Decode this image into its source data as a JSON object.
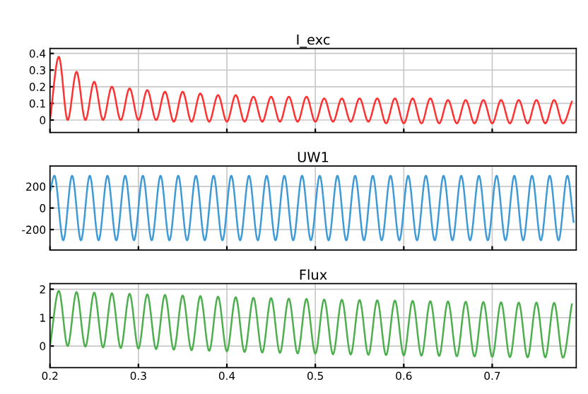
{
  "chart_data": [
    {
      "type": "line",
      "title": "I_exc",
      "xlim": [
        0.2,
        0.795
      ],
      "ylim": [
        -0.075,
        0.43
      ],
      "xticks": [
        0.2,
        0.3,
        0.4,
        0.5,
        0.6,
        0.7
      ],
      "yticks": [
        0,
        0.1,
        0.2,
        0.3,
        0.4
      ],
      "grid": true,
      "tick_labels": "y",
      "x": [
        0.2,
        0.21,
        0.22,
        0.23,
        0.24,
        0.25,
        0.26,
        0.27,
        0.28,
        0.29,
        0.3,
        0.31,
        0.32,
        0.33,
        0.34,
        0.35,
        0.36,
        0.37,
        0.38,
        0.39,
        0.4,
        0.41,
        0.42,
        0.43,
        0.44,
        0.45,
        0.46,
        0.47,
        0.48,
        0.49,
        0.5,
        0.51,
        0.52,
        0.53,
        0.54,
        0.55,
        0.56,
        0.57,
        0.58,
        0.59,
        0.6,
        0.61,
        0.62,
        0.63,
        0.64,
        0.65,
        0.66,
        0.67,
        0.68,
        0.69,
        0.7,
        0.71,
        0.72,
        0.73,
        0.74,
        0.75,
        0.76,
        0.77,
        0.78,
        0.79
      ],
      "series": [
        {
          "color": "#ff3030",
          "values": [
            0,
            0.38,
            0,
            0.29,
            0,
            0.23,
            0,
            0.2,
            0,
            0.19,
            0,
            0.18,
            0,
            0.17,
            -0.01,
            0.17,
            -0.01,
            0.16,
            -0.01,
            0.15,
            -0.01,
            0.15,
            -0.01,
            0.14,
            -0.01,
            0.14,
            -0.01,
            0.14,
            -0.01,
            0.14,
            -0.01,
            0.13,
            -0.01,
            0.13,
            -0.01,
            0.13,
            -0.01,
            0.13,
            -0.02,
            0.13,
            -0.02,
            0.13,
            -0.02,
            0.13,
            -0.02,
            0.12,
            -0.02,
            0.12,
            -0.02,
            0.12,
            -0.02,
            0.12,
            -0.02,
            0.12,
            -0.02,
            0.12,
            -0.02,
            0.12,
            -0.02,
            0.11
          ]
        }
      ]
    },
    {
      "type": "line",
      "title": "UW1",
      "xlim": [
        0.2,
        0.795
      ],
      "ylim": [
        -390,
        390
      ],
      "xticks": [
        0.2,
        0.3,
        0.4,
        0.5,
        0.6,
        0.7
      ],
      "yticks": [
        -200,
        0,
        200
      ],
      "grid": true,
      "tick_labels": "y",
      "x": [
        0.2,
        0.205,
        0.215,
        0.225,
        0.235,
        0.245,
        0.255,
        0.265,
        0.275,
        0.285,
        0.295,
        0.305,
        0.315,
        0.325,
        0.335,
        0.345,
        0.355,
        0.365,
        0.375,
        0.385,
        0.395,
        0.405,
        0.415,
        0.425,
        0.435,
        0.445,
        0.455,
        0.465,
        0.475,
        0.485,
        0.495,
        0.505,
        0.515,
        0.525,
        0.535,
        0.545,
        0.555,
        0.565,
        0.575,
        0.585,
        0.595,
        0.605,
        0.615,
        0.625,
        0.635,
        0.645,
        0.655,
        0.665,
        0.675,
        0.685,
        0.695,
        0.705,
        0.715,
        0.725,
        0.735,
        0.745,
        0.755,
        0.765,
        0.775,
        0.785,
        0.792
      ],
      "series": [
        {
          "color": "#3d9ad6",
          "values": [
            150,
            300,
            -300,
            300,
            -300,
            300,
            -300,
            300,
            -300,
            300,
            -300,
            300,
            -300,
            300,
            -300,
            300,
            -300,
            300,
            -300,
            300,
            -300,
            300,
            -300,
            300,
            -300,
            300,
            -300,
            300,
            -300,
            300,
            -300,
            300,
            -300,
            300,
            -300,
            300,
            -300,
            300,
            -300,
            300,
            -300,
            300,
            -300,
            300,
            -300,
            300,
            -300,
            300,
            -300,
            300,
            -300,
            300,
            -300,
            300,
            -300,
            300,
            -300,
            300,
            -300,
            300,
            -130
          ]
        }
      ]
    },
    {
      "type": "line",
      "title": "Flux",
      "xlim": [
        0.2,
        0.795
      ],
      "ylim": [
        -0.76,
        2.2
      ],
      "xticks": [
        0.2,
        0.3,
        0.4,
        0.5,
        0.6,
        0.7
      ],
      "yticks": [
        0,
        1,
        2
      ],
      "grid": true,
      "x": [
        0.2,
        0.21,
        0.22,
        0.23,
        0.24,
        0.25,
        0.26,
        0.27,
        0.28,
        0.29,
        0.3,
        0.31,
        0.32,
        0.33,
        0.34,
        0.35,
        0.36,
        0.37,
        0.38,
        0.39,
        0.4,
        0.41,
        0.42,
        0.43,
        0.44,
        0.45,
        0.46,
        0.47,
        0.48,
        0.49,
        0.5,
        0.51,
        0.52,
        0.53,
        0.54,
        0.55,
        0.56,
        0.57,
        0.58,
        0.59,
        0.6,
        0.61,
        0.62,
        0.63,
        0.64,
        0.65,
        0.66,
        0.67,
        0.68,
        0.69,
        0.7,
        0.71,
        0.72,
        0.73,
        0.74,
        0.75,
        0.76,
        0.77,
        0.78,
        0.79
      ],
      "series": [
        {
          "color": "#4cae4c",
          "values": [
            0,
            1.94,
            0,
            1.9,
            -0.02,
            1.88,
            -0.05,
            1.86,
            -0.07,
            1.84,
            -0.09,
            1.82,
            -0.11,
            1.8,
            -0.13,
            1.78,
            -0.15,
            1.76,
            -0.17,
            1.74,
            -0.19,
            1.72,
            -0.21,
            1.7,
            -0.23,
            1.69,
            -0.24,
            1.67,
            -0.26,
            1.66,
            -0.27,
            1.64,
            -0.29,
            1.63,
            -0.3,
            1.62,
            -0.31,
            1.61,
            -0.32,
            1.6,
            -0.33,
            1.59,
            -0.34,
            1.58,
            -0.35,
            1.57,
            -0.36,
            1.56,
            -0.37,
            1.55,
            -0.38,
            1.54,
            -0.39,
            1.53,
            -0.4,
            1.53,
            -0.4,
            1.52,
            -0.41,
            1.47
          ]
        }
      ]
    }
  ]
}
